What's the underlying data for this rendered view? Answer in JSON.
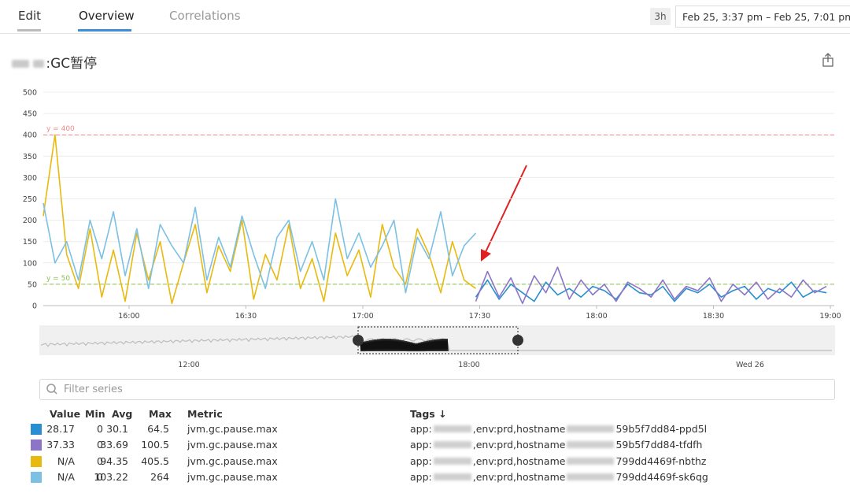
{
  "tabs": [
    "Edit",
    "Overview",
    "Correlations"
  ],
  "time_range": {
    "span": "3h",
    "range": "Feb 25, 3:37 pm – Feb 25, 7:01 pm"
  },
  "widget": {
    "title": ":GC暂停"
  },
  "chart_data": {
    "type": "line",
    "xlim": [
      "15:38",
      "19:01"
    ],
    "xticks": [
      "16:00",
      "16:30",
      "17:00",
      "17:30",
      "18:00",
      "18:30",
      "19:00"
    ],
    "ylim": [
      0,
      500
    ],
    "yticks": [
      0,
      50,
      100,
      150,
      200,
      250,
      300,
      350,
      400,
      450,
      500
    ],
    "grid": true,
    "reference_lines": [
      {
        "value": 400,
        "label": "y = 400",
        "color": "#f08a8a"
      },
      {
        "value": 50,
        "label": "y = 50",
        "color": "#8cc152"
      }
    ],
    "x": [
      "15:38",
      "15:41",
      "15:44",
      "15:47",
      "15:50",
      "15:53",
      "15:56",
      "15:59",
      "16:02",
      "16:05",
      "16:08",
      "16:11",
      "16:14",
      "16:17",
      "16:20",
      "16:23",
      "16:26",
      "16:29",
      "16:32",
      "16:35",
      "16:38",
      "16:41",
      "16:44",
      "16:47",
      "16:50",
      "16:53",
      "16:56",
      "16:59",
      "17:02",
      "17:05",
      "17:08",
      "17:11",
      "17:14",
      "17:17",
      "17:20",
      "17:23",
      "17:26",
      "17:29",
      "17:32",
      "17:35",
      "17:38",
      "17:41",
      "17:44",
      "17:47",
      "17:50",
      "17:53",
      "17:56",
      "17:59",
      "18:02",
      "18:05",
      "18:08",
      "18:11",
      "18:14",
      "18:17",
      "18:20",
      "18:23",
      "18:26",
      "18:29",
      "18:32",
      "18:35",
      "18:38",
      "18:41",
      "18:44",
      "18:47",
      "18:50",
      "18:53",
      "18:56",
      "18:59"
    ],
    "series": [
      {
        "color": "#e8b90f",
        "values": [
          210,
          400,
          120,
          40,
          180,
          20,
          130,
          10,
          170,
          60,
          150,
          5,
          100,
          190,
          30,
          140,
          80,
          200,
          15,
          120,
          60,
          190,
          40,
          110,
          10,
          170,
          70,
          130,
          20,
          190,
          90,
          50,
          180,
          120,
          30,
          150,
          60,
          40,
          null,
          null,
          null,
          null,
          null,
          null,
          null,
          null,
          null,
          null,
          null,
          null,
          null,
          null,
          null,
          null,
          null,
          null,
          null,
          null,
          null,
          null,
          null,
          null,
          null,
          null,
          null,
          null,
          null,
          null
        ]
      },
      {
        "color": "#7cc0e3",
        "values": [
          240,
          100,
          150,
          60,
          200,
          110,
          220,
          70,
          180,
          40,
          190,
          140,
          100,
          230,
          60,
          160,
          90,
          210,
          120,
          40,
          160,
          200,
          80,
          150,
          60,
          250,
          110,
          170,
          90,
          140,
          200,
          30,
          160,
          110,
          220,
          70,
          140,
          170,
          null,
          null,
          null,
          null,
          null,
          null,
          null,
          null,
          null,
          null,
          null,
          null,
          null,
          null,
          null,
          null,
          null,
          null,
          null,
          null,
          null,
          null,
          null,
          null,
          null,
          null,
          null,
          null,
          null,
          null
        ]
      },
      {
        "color": "#2a8fd0",
        "values": [
          null,
          null,
          null,
          null,
          null,
          null,
          null,
          null,
          null,
          null,
          null,
          null,
          null,
          null,
          null,
          null,
          null,
          null,
          null,
          null,
          null,
          null,
          null,
          null,
          null,
          null,
          null,
          null,
          null,
          null,
          null,
          null,
          null,
          null,
          null,
          null,
          null,
          20,
          60,
          15,
          50,
          30,
          10,
          55,
          25,
          40,
          20,
          45,
          35,
          15,
          50,
          30,
          25,
          45,
          10,
          40,
          30,
          50,
          20,
          35,
          45,
          15,
          40,
          30,
          55,
          20,
          35,
          30
        ]
      },
      {
        "color": "#8c75c7",
        "values": [
          null,
          null,
          null,
          null,
          null,
          null,
          null,
          null,
          null,
          null,
          null,
          null,
          null,
          null,
          null,
          null,
          null,
          null,
          null,
          null,
          null,
          null,
          null,
          null,
          null,
          null,
          null,
          null,
          null,
          null,
          null,
          null,
          null,
          null,
          null,
          null,
          null,
          10,
          80,
          20,
          65,
          5,
          70,
          30,
          90,
          15,
          60,
          25,
          50,
          10,
          55,
          40,
          20,
          60,
          15,
          45,
          35,
          65,
          10,
          50,
          25,
          55,
          15,
          40,
          20,
          60,
          30,
          45
        ]
      }
    ]
  },
  "navigator": {
    "ticks": [
      "12:00",
      "18:00",
      "Wed 26"
    ]
  },
  "filter": {
    "placeholder": "Filter series"
  },
  "table": {
    "headers": [
      "Value",
      "Min",
      "Avg",
      "Max",
      "Metric",
      "Tags ↓"
    ],
    "rows": [
      {
        "series": 2,
        "value": 28.17,
        "min": 0,
        "avg": 30.1,
        "max": 64.5,
        "metric": "jvm.gc.pause.max",
        "tags": [
          "app:",
          ",env:prd,hostname",
          "59b5f7dd84-ppd5l"
        ]
      },
      {
        "series": 3,
        "value": 37.33,
        "min": 0,
        "avg": 33.69,
        "max": 100.5,
        "metric": "jvm.gc.pause.max",
        "tags": [
          "app:",
          ",env:prd,hostname",
          "59b5f7dd84-tfdfh"
        ]
      },
      {
        "series": 0,
        "value": "N/A",
        "min": 0,
        "avg": 94.35,
        "max": 405.5,
        "metric": "jvm.gc.pause.max",
        "tags": [
          "app:",
          ",env:prd,hostname",
          "799dd4469f-nbthz"
        ]
      },
      {
        "series": 1,
        "value": "N/A",
        "min": 0,
        "avg": 103.22,
        "max": 264,
        "metric": "jvm.gc.pause.max",
        "tags": [
          "app:",
          ",env:prd,hostname",
          "799dd4469f-sk6qg"
        ]
      }
    ]
  }
}
